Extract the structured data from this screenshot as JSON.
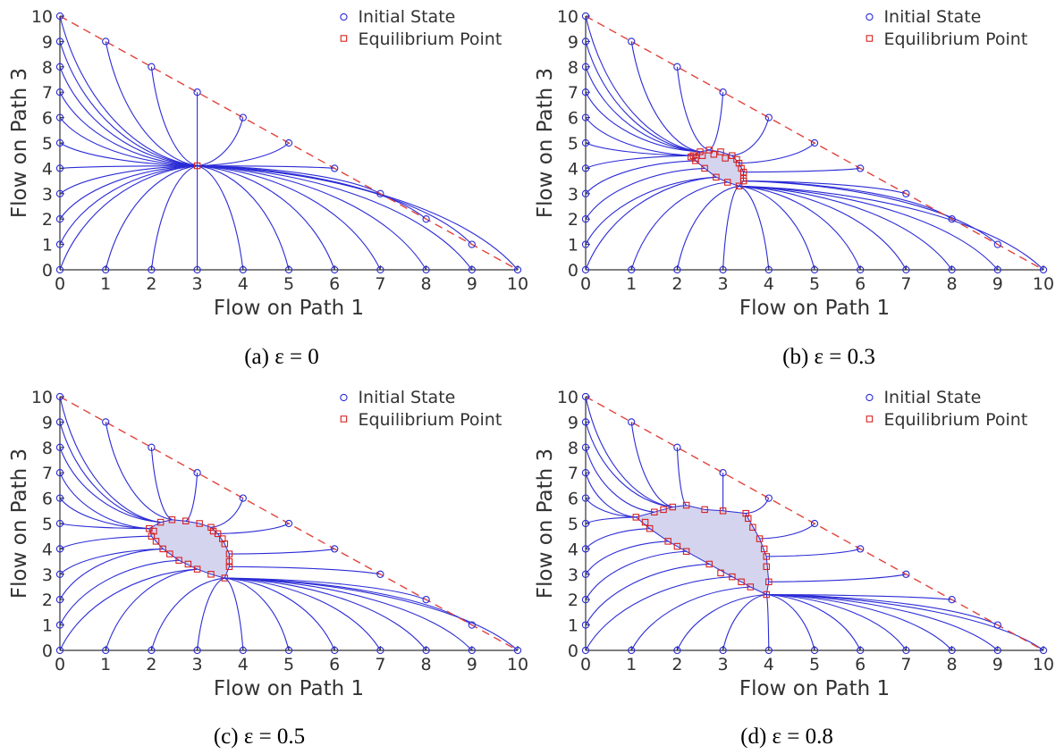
{
  "figure": {
    "captions": [
      "(a)  ε = 0",
      "(b)  ε = 0.3",
      "(c)  ε = 0.5",
      "(d)  ε = 0.8"
    ]
  },
  "colors": {
    "trajectory": "#2b2bd6",
    "initial_marker": "#2b2bd6",
    "equilibrium_marker": "#d62020",
    "boundary_dashed": "#e0443c",
    "region_fill": "#c6c6ea",
    "axis": "#333333"
  },
  "chart_data": [
    {
      "type": "scatter",
      "panel": "a",
      "epsilon": 0,
      "xlabel": "Flow on Path 1",
      "ylabel": "Flow on Path 3",
      "xlim": [
        0,
        10
      ],
      "ylim": [
        0,
        10
      ],
      "xticks": [
        0,
        1,
        2,
        3,
        4,
        5,
        6,
        7,
        8,
        9,
        10
      ],
      "yticks": [
        0,
        1,
        2,
        3,
        4,
        5,
        6,
        7,
        8,
        9,
        10
      ],
      "legend": {
        "position": "top-right",
        "entries": [
          "Initial State",
          "Equilibrium Point"
        ]
      },
      "boundary_line": {
        "style": "dashed",
        "from": [
          0,
          10
        ],
        "to": [
          10,
          0
        ]
      },
      "initial_states": [
        [
          0,
          0
        ],
        [
          1,
          0
        ],
        [
          2,
          0
        ],
        [
          3,
          0
        ],
        [
          4,
          0
        ],
        [
          5,
          0
        ],
        [
          6,
          0
        ],
        [
          7,
          0
        ],
        [
          8,
          0
        ],
        [
          9,
          0
        ],
        [
          10,
          0
        ],
        [
          0,
          1
        ],
        [
          0,
          2
        ],
        [
          0,
          3
        ],
        [
          0,
          4
        ],
        [
          0,
          5
        ],
        [
          0,
          6
        ],
        [
          0,
          7
        ],
        [
          0,
          8
        ],
        [
          0,
          9
        ],
        [
          0,
          10
        ],
        [
          1,
          9
        ],
        [
          2,
          8
        ],
        [
          3,
          7
        ],
        [
          4,
          6
        ],
        [
          5,
          5
        ],
        [
          6,
          4
        ],
        [
          7,
          3
        ],
        [
          8,
          2
        ],
        [
          9,
          1
        ]
      ],
      "equilibrium_points": [
        [
          3.0,
          4.1
        ]
      ]
    },
    {
      "type": "scatter",
      "panel": "b",
      "epsilon": 0.3,
      "xlabel": "Flow on Path 1",
      "ylabel": "Flow on Path 3",
      "xlim": [
        0,
        10
      ],
      "ylim": [
        0,
        10
      ],
      "xticks": [
        0,
        1,
        2,
        3,
        4,
        5,
        6,
        7,
        8,
        9,
        10
      ],
      "yticks": [
        0,
        1,
        2,
        3,
        4,
        5,
        6,
        7,
        8,
        9,
        10
      ],
      "legend": {
        "position": "top-right",
        "entries": [
          "Initial State",
          "Equilibrium Point"
        ]
      },
      "boundary_line": {
        "style": "dashed",
        "from": [
          0,
          10
        ],
        "to": [
          10,
          0
        ]
      },
      "initial_states": [
        [
          0,
          0
        ],
        [
          1,
          0
        ],
        [
          2,
          0
        ],
        [
          3,
          0
        ],
        [
          4,
          0
        ],
        [
          5,
          0
        ],
        [
          6,
          0
        ],
        [
          7,
          0
        ],
        [
          8,
          0
        ],
        [
          9,
          0
        ],
        [
          10,
          0
        ],
        [
          0,
          1
        ],
        [
          0,
          2
        ],
        [
          0,
          3
        ],
        [
          0,
          4
        ],
        [
          0,
          5
        ],
        [
          0,
          6
        ],
        [
          0,
          7
        ],
        [
          0,
          8
        ],
        [
          0,
          9
        ],
        [
          0,
          10
        ],
        [
          1,
          9
        ],
        [
          2,
          8
        ],
        [
          3,
          7
        ],
        [
          4,
          6
        ],
        [
          5,
          5
        ],
        [
          6,
          4
        ],
        [
          7,
          3
        ],
        [
          8,
          2
        ],
        [
          9,
          1
        ]
      ],
      "equilibrium_region": [
        [
          2.35,
          4.5
        ],
        [
          2.5,
          4.65
        ],
        [
          2.7,
          4.72
        ],
        [
          2.95,
          4.65
        ],
        [
          3.2,
          4.5
        ],
        [
          3.35,
          4.2
        ],
        [
          3.45,
          3.85
        ],
        [
          3.45,
          3.5
        ],
        [
          3.35,
          3.3
        ],
        [
          3.1,
          3.45
        ],
        [
          2.85,
          3.65
        ],
        [
          2.6,
          4.0
        ],
        [
          2.4,
          4.3
        ]
      ],
      "equilibrium_points": [
        [
          2.35,
          4.5
        ],
        [
          2.4,
          4.4
        ],
        [
          2.5,
          4.65
        ],
        [
          2.7,
          4.72
        ],
        [
          2.95,
          4.65
        ],
        [
          3.2,
          4.5
        ],
        [
          3.3,
          4.35
        ],
        [
          3.35,
          4.2
        ],
        [
          3.4,
          4.0
        ],
        [
          3.45,
          3.85
        ],
        [
          3.45,
          3.6
        ],
        [
          3.45,
          3.5
        ],
        [
          3.35,
          3.3
        ],
        [
          3.1,
          3.45
        ],
        [
          2.85,
          3.65
        ],
        [
          2.6,
          4.0
        ],
        [
          2.4,
          4.3
        ],
        [
          2.3,
          4.45
        ],
        [
          2.55,
          4.5
        ],
        [
          2.8,
          4.55
        ],
        [
          3.05,
          4.4
        ]
      ]
    },
    {
      "type": "scatter",
      "panel": "c",
      "epsilon": 0.5,
      "xlabel": "Flow on Path 1",
      "ylabel": "Flow on Path 3",
      "xlim": [
        0,
        10
      ],
      "ylim": [
        0,
        10
      ],
      "xticks": [
        0,
        1,
        2,
        3,
        4,
        5,
        6,
        7,
        8,
        9,
        10
      ],
      "yticks": [
        0,
        1,
        2,
        3,
        4,
        5,
        6,
        7,
        8,
        9,
        10
      ],
      "legend": {
        "position": "top-right",
        "entries": [
          "Initial State",
          "Equilibrium Point"
        ]
      },
      "boundary_line": {
        "style": "dashed",
        "from": [
          0,
          10
        ],
        "to": [
          10,
          0
        ]
      },
      "initial_states": [
        [
          0,
          0
        ],
        [
          1,
          0
        ],
        [
          2,
          0
        ],
        [
          3,
          0
        ],
        [
          4,
          0
        ],
        [
          5,
          0
        ],
        [
          6,
          0
        ],
        [
          7,
          0
        ],
        [
          8,
          0
        ],
        [
          9,
          0
        ],
        [
          10,
          0
        ],
        [
          0,
          1
        ],
        [
          0,
          2
        ],
        [
          0,
          3
        ],
        [
          0,
          4
        ],
        [
          0,
          5
        ],
        [
          0,
          6
        ],
        [
          0,
          7
        ],
        [
          0,
          8
        ],
        [
          0,
          9
        ],
        [
          0,
          10
        ],
        [
          1,
          9
        ],
        [
          2,
          8
        ],
        [
          3,
          7
        ],
        [
          4,
          6
        ],
        [
          5,
          5
        ],
        [
          6,
          4
        ],
        [
          7,
          3
        ],
        [
          8,
          2
        ],
        [
          9,
          1
        ]
      ],
      "equilibrium_region": [
        [
          1.95,
          4.8
        ],
        [
          2.2,
          5.05
        ],
        [
          2.45,
          5.15
        ],
        [
          2.75,
          5.1
        ],
        [
          3.05,
          5.0
        ],
        [
          3.3,
          4.85
        ],
        [
          3.45,
          4.6
        ],
        [
          3.6,
          4.2
        ],
        [
          3.7,
          3.8
        ],
        [
          3.7,
          3.3
        ],
        [
          3.6,
          2.85
        ],
        [
          3.3,
          3.0
        ],
        [
          3.0,
          3.2
        ],
        [
          2.6,
          3.55
        ],
        [
          2.25,
          4.0
        ],
        [
          2.0,
          4.5
        ]
      ],
      "equilibrium_points": [
        [
          1.95,
          4.8
        ],
        [
          2.05,
          4.7
        ],
        [
          2.2,
          5.05
        ],
        [
          2.45,
          5.15
        ],
        [
          2.75,
          5.1
        ],
        [
          3.05,
          5.0
        ],
        [
          3.3,
          4.85
        ],
        [
          3.35,
          4.7
        ],
        [
          3.45,
          4.6
        ],
        [
          3.55,
          4.4
        ],
        [
          3.6,
          4.2
        ],
        [
          3.7,
          3.8
        ],
        [
          3.7,
          3.5
        ],
        [
          3.7,
          3.3
        ],
        [
          3.6,
          2.85
        ],
        [
          3.3,
          3.0
        ],
        [
          3.0,
          3.2
        ],
        [
          2.6,
          3.55
        ],
        [
          2.25,
          4.0
        ],
        [
          2.0,
          4.5
        ],
        [
          2.1,
          4.3
        ],
        [
          2.4,
          3.8
        ],
        [
          2.8,
          3.4
        ]
      ]
    },
    {
      "type": "scatter",
      "panel": "d",
      "epsilon": 0.8,
      "xlabel": "Flow on Path 1",
      "ylabel": "Flow on Path 3",
      "xlim": [
        0,
        10
      ],
      "ylim": [
        0,
        10
      ],
      "xticks": [
        0,
        1,
        2,
        3,
        4,
        5,
        6,
        7,
        8,
        9,
        10
      ],
      "yticks": [
        0,
        1,
        2,
        3,
        4,
        5,
        6,
        7,
        8,
        9,
        10
      ],
      "legend": {
        "position": "top-right",
        "entries": [
          "Initial State",
          "Equilibrium Point"
        ]
      },
      "boundary_line": {
        "style": "dashed",
        "from": [
          0,
          10
        ],
        "to": [
          10,
          0
        ]
      },
      "initial_states": [
        [
          0,
          0
        ],
        [
          1,
          0
        ],
        [
          2,
          0
        ],
        [
          3,
          0
        ],
        [
          4,
          0
        ],
        [
          5,
          0
        ],
        [
          6,
          0
        ],
        [
          7,
          0
        ],
        [
          8,
          0
        ],
        [
          9,
          0
        ],
        [
          10,
          0
        ],
        [
          0,
          1
        ],
        [
          0,
          2
        ],
        [
          0,
          3
        ],
        [
          0,
          4
        ],
        [
          0,
          5
        ],
        [
          0,
          6
        ],
        [
          0,
          7
        ],
        [
          0,
          8
        ],
        [
          0,
          9
        ],
        [
          0,
          10
        ],
        [
          1,
          9
        ],
        [
          2,
          8
        ],
        [
          3,
          7
        ],
        [
          4,
          6
        ],
        [
          5,
          5
        ],
        [
          6,
          4
        ],
        [
          7,
          3
        ],
        [
          8,
          2
        ],
        [
          9,
          1
        ]
      ],
      "equilibrium_region": [
        [
          1.1,
          5.25
        ],
        [
          1.5,
          5.45
        ],
        [
          1.9,
          5.65
        ],
        [
          2.2,
          5.72
        ],
        [
          2.6,
          5.55
        ],
        [
          3.0,
          5.5
        ],
        [
          3.5,
          5.4
        ],
        [
          3.55,
          5.2
        ],
        [
          3.8,
          4.4
        ],
        [
          3.95,
          3.7
        ],
        [
          4.0,
          2.7
        ],
        [
          3.95,
          2.2
        ],
        [
          3.6,
          2.5
        ],
        [
          3.2,
          2.9
        ],
        [
          2.7,
          3.4
        ],
        [
          2.2,
          3.9
        ],
        [
          1.8,
          4.3
        ],
        [
          1.4,
          4.8
        ]
      ],
      "equilibrium_points": [
        [
          1.1,
          5.25
        ],
        [
          1.3,
          5.05
        ],
        [
          1.5,
          5.45
        ],
        [
          1.7,
          5.55
        ],
        [
          1.9,
          5.65
        ],
        [
          2.2,
          5.72
        ],
        [
          2.6,
          5.55
        ],
        [
          3.0,
          5.5
        ],
        [
          3.5,
          5.4
        ],
        [
          3.55,
          5.2
        ],
        [
          3.65,
          4.85
        ],
        [
          3.8,
          4.4
        ],
        [
          3.9,
          4.0
        ],
        [
          3.95,
          3.7
        ],
        [
          3.95,
          3.3
        ],
        [
          4.0,
          2.7
        ],
        [
          3.95,
          2.2
        ],
        [
          3.6,
          2.5
        ],
        [
          3.2,
          2.9
        ],
        [
          2.7,
          3.4
        ],
        [
          2.2,
          3.9
        ],
        [
          1.8,
          4.3
        ],
        [
          1.4,
          4.8
        ],
        [
          2.0,
          4.1
        ],
        [
          2.95,
          3.05
        ],
        [
          3.4,
          2.7
        ]
      ]
    }
  ]
}
